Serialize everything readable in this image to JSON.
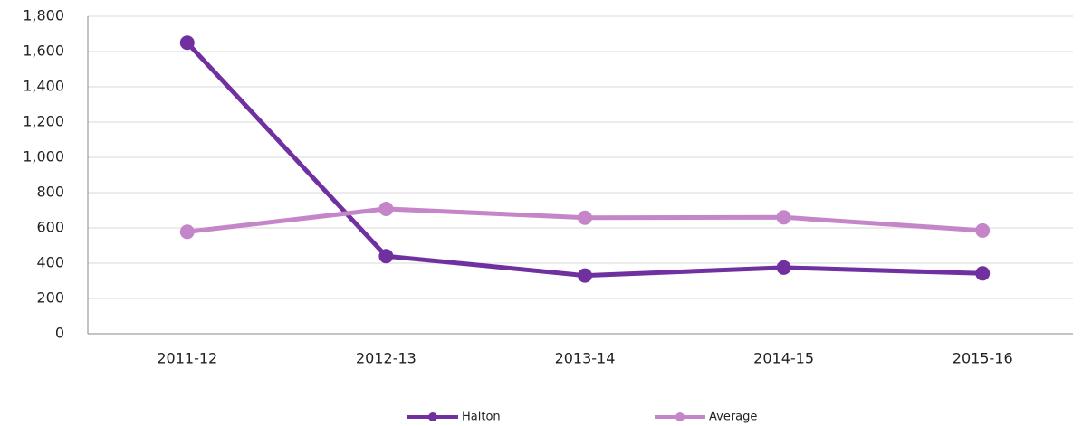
{
  "chart_data": {
    "type": "line",
    "categories": [
      "2011-12",
      "2012-13",
      "2013-14",
      "2014-15",
      "2015-16"
    ],
    "series": [
      {
        "name": "Halton",
        "color": "#7030a0",
        "values": [
          1650,
          440,
          330,
          375,
          342
        ]
      },
      {
        "name": "Average",
        "color": "#c586c9",
        "values": [
          578,
          708,
          658,
          660,
          585
        ]
      }
    ],
    "ylim": [
      0,
      1800
    ],
    "yticks": [
      0,
      200,
      400,
      600,
      800,
      {
        "value": 1000,
        "label": "1,000"
      },
      {
        "value": 1200,
        "label": "1,200"
      },
      {
        "value": 1400,
        "label": "1,400"
      },
      {
        "value": 1600,
        "label": "1,600"
      },
      {
        "value": 1800,
        "label": "1,800"
      }
    ],
    "grid": true,
    "legend": "bottom"
  }
}
